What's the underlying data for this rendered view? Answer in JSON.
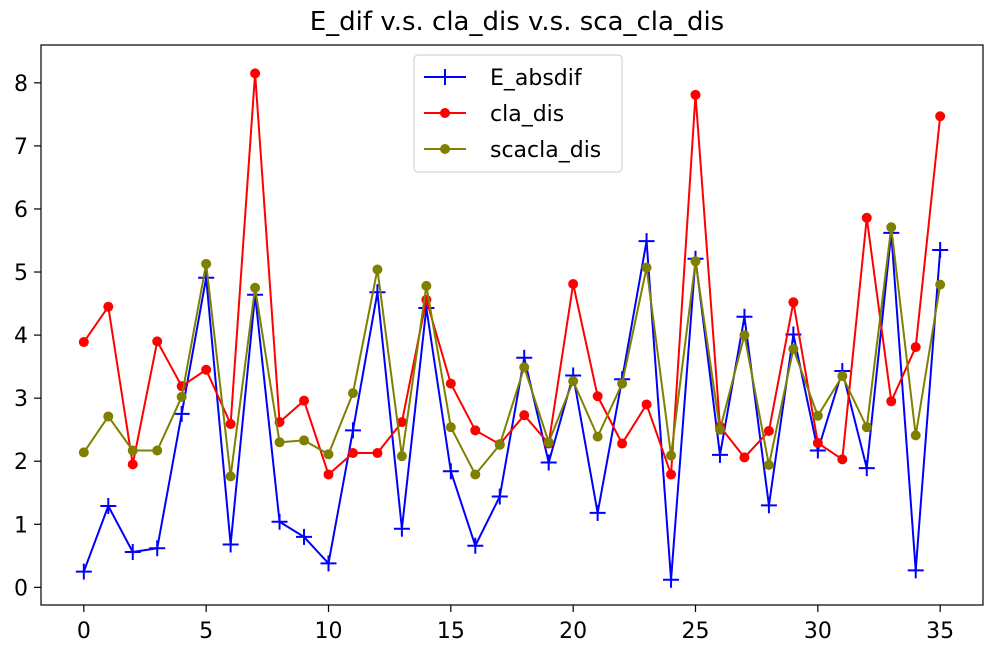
{
  "chart_data": {
    "type": "line",
    "title": "E_dif v.s. cla_dis v.s. sca_cla_dis",
    "xlabel": "",
    "ylabel": "",
    "xlim": [
      -1.75,
      36.75
    ],
    "ylim": [
      -0.28,
      8.6
    ],
    "grid": false,
    "legend_position": "upper center",
    "x_ticks": [
      0,
      5,
      10,
      15,
      20,
      25,
      30,
      35
    ],
    "y_ticks": [
      0,
      1,
      2,
      3,
      4,
      5,
      6,
      7,
      8
    ],
    "x": [
      0,
      1,
      2,
      3,
      4,
      5,
      6,
      7,
      8,
      9,
      10,
      11,
      12,
      13,
      14,
      15,
      16,
      17,
      18,
      19,
      20,
      21,
      22,
      23,
      24,
      25,
      26,
      27,
      28,
      29,
      30,
      31,
      32,
      33,
      34,
      35
    ],
    "series": [
      {
        "name": "E_absdif",
        "color": "#0000ff",
        "marker": "plus",
        "values": [
          0.25,
          1.29,
          0.56,
          0.62,
          2.75,
          4.91,
          0.68,
          4.64,
          1.04,
          0.8,
          0.38,
          2.49,
          4.68,
          0.93,
          4.43,
          1.84,
          0.66,
          1.44,
          3.64,
          1.98,
          3.36,
          1.18,
          3.3,
          5.49,
          0.12,
          5.21,
          2.1,
          4.29,
          1.3,
          4.01,
          2.17,
          3.43,
          1.89,
          5.62,
          0.27,
          5.35
        ]
      },
      {
        "name": "cla_dis",
        "color": "#ff0000",
        "marker": "circle",
        "values": [
          3.89,
          4.45,
          1.95,
          3.9,
          3.19,
          3.45,
          2.59,
          8.15,
          2.62,
          2.96,
          1.79,
          2.13,
          2.13,
          2.62,
          4.56,
          3.23,
          2.49,
          2.27,
          2.73,
          2.28,
          4.81,
          3.03,
          2.28,
          2.9,
          1.79,
          7.81,
          2.55,
          2.06,
          2.48,
          4.52,
          2.29,
          2.03,
          5.86,
          2.95,
          3.81,
          7.47
        ]
      },
      {
        "name": "scacla_dis",
        "color": "#808000",
        "marker": "circle",
        "values": [
          2.14,
          2.71,
          2.17,
          2.17,
          3.02,
          5.13,
          1.76,
          4.75,
          2.3,
          2.33,
          2.11,
          3.08,
          5.04,
          2.08,
          4.78,
          2.54,
          1.79,
          2.26,
          3.49,
          2.3,
          3.27,
          2.39,
          3.23,
          5.07,
          2.09,
          5.17,
          2.5,
          4.0,
          1.94,
          3.78,
          2.72,
          3.35,
          2.54,
          5.71,
          2.41,
          4.8
        ]
      }
    ]
  }
}
